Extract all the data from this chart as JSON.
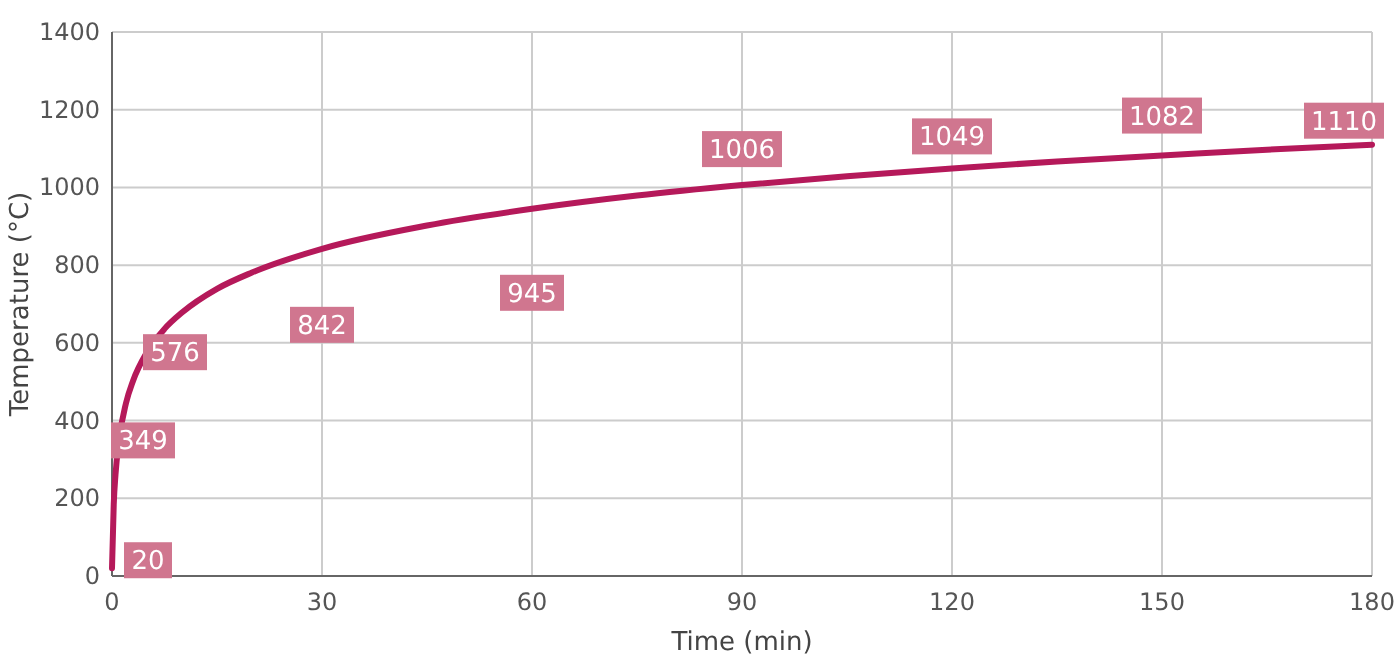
{
  "chart_data": {
    "type": "line",
    "xlabel": "Time (min)",
    "ylabel": "Temperature (°C)",
    "x": [
      0,
      0.25,
      0.5,
      1,
      2,
      3,
      5,
      7.5,
      10,
      15,
      20,
      30,
      45,
      60,
      75,
      90,
      105,
      120,
      135,
      150,
      165,
      180
    ],
    "series": [
      {
        "color": "#b5195a",
        "values": [
          20,
          185,
          261,
          349,
          445,
          502,
          576,
          636,
          678,
          739,
          781,
          842,
          902,
          945,
          979,
          1006,
          1029,
          1049,
          1067,
          1082,
          1097,
          1110
        ],
        "value_labels": [
          "20",
          null,
          null,
          "349",
          null,
          null,
          "576",
          null,
          null,
          null,
          null,
          "842",
          null,
          "945",
          null,
          "1006",
          null,
          "1049",
          null,
          "1082",
          null,
          "1110"
        ]
      }
    ],
    "xlim": [
      0,
      180
    ],
    "xticks": [
      0,
      30,
      60,
      90,
      120,
      150,
      180
    ],
    "ylim": [
      0,
      1400
    ],
    "yticks": [
      0,
      200,
      400,
      600,
      800,
      1000,
      1200,
      1400
    ],
    "grid": true,
    "marker": "none",
    "line_style": "solid"
  }
}
